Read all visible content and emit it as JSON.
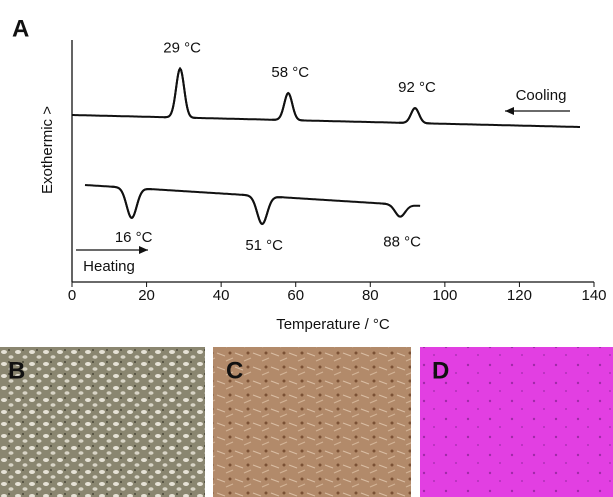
{
  "chart_data": {
    "type": "line",
    "panel_label": "A",
    "xlabel": "Temperature / °C",
    "ylabel": "Exothermic >",
    "xlim": [
      0,
      140
    ],
    "xticks": [
      0,
      20,
      40,
      60,
      80,
      100,
      120,
      140
    ],
    "series": [
      {
        "name": "Cooling",
        "color": "#111111",
        "peaks": [
          {
            "value": 29,
            "label": "29 °C"
          },
          {
            "value": 58,
            "label": "58 °C"
          },
          {
            "value": 92,
            "label": "92 °C"
          }
        ]
      },
      {
        "name": "Heating",
        "color": "#111111",
        "peaks": [
          {
            "value": 16,
            "label": "16 °C"
          },
          {
            "value": 51,
            "label": "51 °C"
          },
          {
            "value": 88,
            "label": "88 °C"
          }
        ]
      }
    ]
  },
  "images": [
    {
      "label": "B"
    },
    {
      "label": "C"
    },
    {
      "label": "D"
    }
  ]
}
